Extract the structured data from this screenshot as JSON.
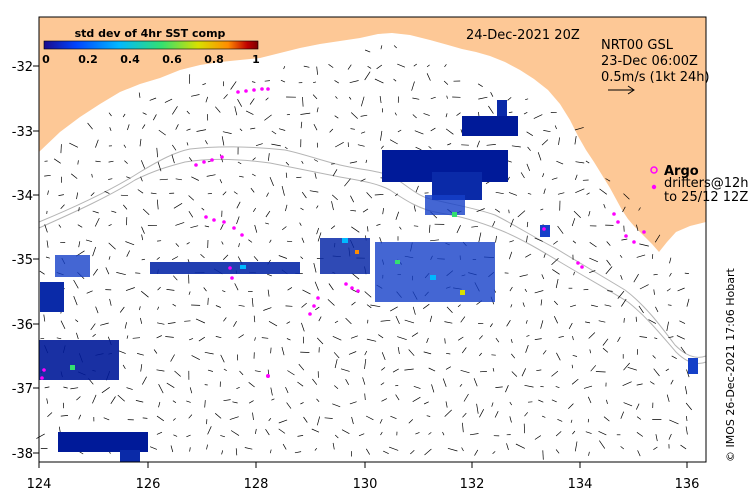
{
  "map": {
    "date": "24-Dec-2021 20Z",
    "colorbar": {
      "title": "std dev of 4hr SST comp",
      "ticks": [
        "0",
        "0.2",
        "0.4",
        "0.6",
        "0.8",
        "1"
      ],
      "colors": [
        "#1a0a8c",
        "#0044ff",
        "#00b8ff",
        "#33e070",
        "#d8e000",
        "#ff8c00",
        "#c00000",
        "#7a0000"
      ]
    },
    "product": {
      "line1": "NRT00 GSL",
      "line2": "23-Dec 06:00Z",
      "line3": "0.5m/s (1kt 24h)"
    },
    "legend": {
      "argo": "Argo",
      "drifters_line1": "drifters@12h",
      "drifters_line2": "to 25/12 12Z"
    },
    "axes": {
      "x_ticks": [
        "124",
        "126",
        "128",
        "130",
        "132",
        "134",
        "136"
      ],
      "y_ticks": [
        "-32",
        "-33",
        "-34",
        "-35",
        "-36",
        "-37",
        "-38"
      ]
    },
    "credit": "© IMOS 26-Dec-2021 17:06 Hobart",
    "colors": {
      "land": "#fdc896",
      "drifter": "#ff00ff",
      "sst_main": "#001a99"
    }
  }
}
